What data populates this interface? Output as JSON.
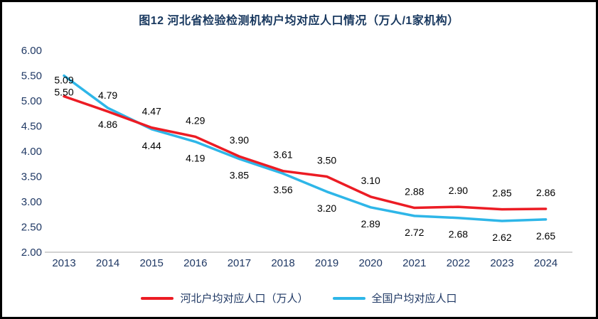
{
  "title": "图12  河北省检验检测机构户均对应人口情况（万人/1家机构）",
  "chart_data": {
    "type": "line",
    "x": [
      "2013",
      "2014",
      "2015",
      "2016",
      "2017",
      "2018",
      "2019",
      "2020",
      "2021",
      "2022",
      "2023",
      "2024"
    ],
    "series": [
      {
        "name": "河北户均对应人口（万人）",
        "color": "#EC1C24",
        "label_position": "above",
        "values": [
          5.09,
          4.79,
          4.47,
          4.29,
          3.9,
          3.61,
          3.5,
          3.1,
          2.88,
          2.9,
          2.85,
          2.86
        ]
      },
      {
        "name": "全国户均对应人口",
        "color": "#2EB6E8",
        "label_position": "below",
        "values": [
          5.5,
          4.86,
          4.44,
          4.19,
          3.85,
          3.56,
          3.2,
          2.89,
          2.72,
          2.68,
          2.62,
          2.65
        ]
      }
    ],
    "ylim": [
      2.0,
      6.0
    ],
    "ytick_step": 0.5,
    "yticks": [
      "6.00",
      "5.50",
      "5.00",
      "4.50",
      "4.00",
      "3.50",
      "3.00",
      "2.50",
      "2.00"
    ],
    "grid": false,
    "legend_position": "bottom",
    "axis_color": "#A6A6A6",
    "tick_label_color": "#1F3864",
    "data_label_color": "#000000"
  }
}
